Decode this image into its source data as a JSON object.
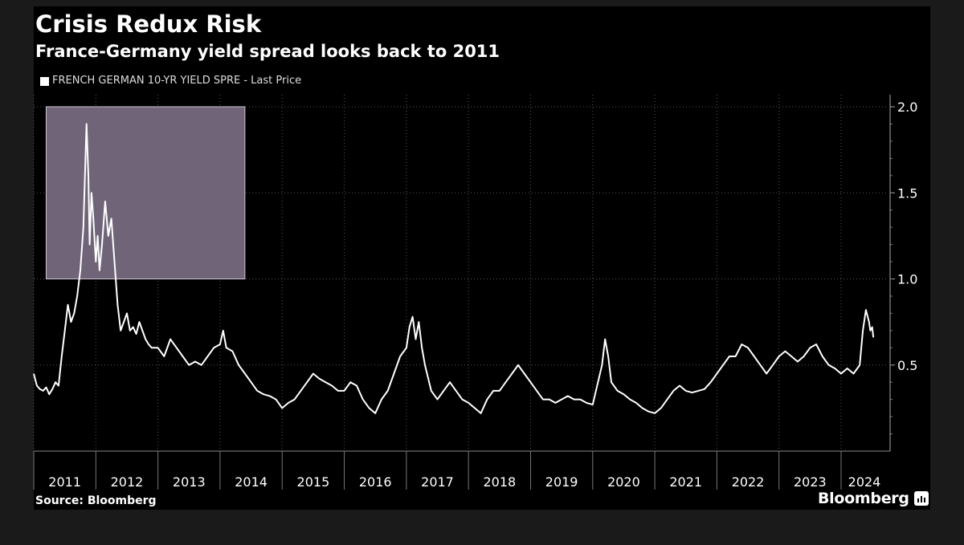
{
  "header": {
    "title": "Crisis Redux Risk",
    "subtitle": "France-Germany yield spread looks back to 2011"
  },
  "footer": {
    "source": "Source: Bloomberg",
    "brand": "Bloomberg",
    "brand_icon": "bar-chart-icon"
  },
  "colors": {
    "background": "#000000",
    "line": "#ffffff",
    "highlight": "#6f6478",
    "grid": "#555555"
  },
  "chart_data": {
    "type": "line",
    "title": "Crisis Redux Risk",
    "subtitle": "France-Germany yield spread looks back to 2011",
    "legend": [
      "FRENCH GERMAN 10-YR YIELD SPRE - Last Price"
    ],
    "legend_position": "top-left",
    "y_axis_position": "right",
    "grid": true,
    "grid_style": "dotted",
    "xlim": [
      2011.0,
      2024.75
    ],
    "ylim": [
      0.0,
      2.0
    ],
    "x_ticks": [
      "2011",
      "2012",
      "2013",
      "2014",
      "2015",
      "2016",
      "2017",
      "2018",
      "2019",
      "2020",
      "2021",
      "2022",
      "2023",
      "2024"
    ],
    "y_ticks": [
      "0.5",
      "1.0",
      "1.5",
      "2.0"
    ],
    "highlight": {
      "x_start": 2011.2,
      "x_end": 2014.4,
      "y_start": 1.0,
      "y_end": 2.0
    },
    "series": [
      {
        "name": "FRENCH GERMAN 10-YR YIELD SPRE - Last Price",
        "x": [
          2011.0,
          2011.05,
          2011.1,
          2011.15,
          2011.2,
          2011.25,
          2011.3,
          2011.35,
          2011.4,
          2011.45,
          2011.5,
          2011.55,
          2011.6,
          2011.65,
          2011.7,
          2011.75,
          2011.8,
          2011.85,
          2011.88,
          2011.9,
          2011.93,
          2011.96,
          2012.0,
          2012.03,
          2012.06,
          2012.1,
          2012.15,
          2012.2,
          2012.25,
          2012.3,
          2012.35,
          2012.4,
          2012.45,
          2012.5,
          2012.55,
          2012.6,
          2012.65,
          2012.7,
          2012.75,
          2012.8,
          2012.85,
          2012.9,
          2013.0,
          2013.1,
          2013.2,
          2013.3,
          2013.4,
          2013.5,
          2013.6,
          2013.7,
          2013.8,
          2013.9,
          2014.0,
          2014.05,
          2014.1,
          2014.2,
          2014.3,
          2014.4,
          2014.5,
          2014.6,
          2014.7,
          2014.8,
          2014.9,
          2015.0,
          2015.1,
          2015.2,
          2015.3,
          2015.4,
          2015.5,
          2015.6,
          2015.7,
          2015.8,
          2015.9,
          2016.0,
          2016.1,
          2016.2,
          2016.3,
          2016.4,
          2016.5,
          2016.6,
          2016.7,
          2016.8,
          2016.9,
          2017.0,
          2017.05,
          2017.1,
          2017.15,
          2017.2,
          2017.25,
          2017.3,
          2017.4,
          2017.5,
          2017.6,
          2017.7,
          2017.8,
          2017.9,
          2018.0,
          2018.1,
          2018.2,
          2018.3,
          2018.4,
          2018.5,
          2018.6,
          2018.7,
          2018.8,
          2018.9,
          2019.0,
          2019.1,
          2019.2,
          2019.3,
          2019.4,
          2019.5,
          2019.6,
          2019.7,
          2019.8,
          2019.9,
          2020.0,
          2020.15,
          2020.2,
          2020.25,
          2020.3,
          2020.4,
          2020.5,
          2020.6,
          2020.7,
          2020.8,
          2020.9,
          2021.0,
          2021.1,
          2021.2,
          2021.3,
          2021.4,
          2021.5,
          2021.6,
          2021.7,
          2021.8,
          2021.9,
          2022.0,
          2022.1,
          2022.2,
          2022.3,
          2022.4,
          2022.5,
          2022.6,
          2022.7,
          2022.8,
          2022.9,
          2023.0,
          2023.1,
          2023.2,
          2023.3,
          2023.4,
          2023.5,
          2023.6,
          2023.7,
          2023.8,
          2023.9,
          2024.0,
          2024.1,
          2024.2,
          2024.3,
          2024.35,
          2024.4,
          2024.45,
          2024.47,
          2024.5,
          2024.52
        ],
        "values": [
          0.45,
          0.38,
          0.36,
          0.35,
          0.37,
          0.33,
          0.36,
          0.4,
          0.38,
          0.55,
          0.7,
          0.85,
          0.75,
          0.8,
          0.9,
          1.05,
          1.3,
          1.9,
          1.6,
          1.2,
          1.5,
          1.35,
          1.1,
          1.25,
          1.05,
          1.2,
          1.45,
          1.25,
          1.35,
          1.1,
          0.85,
          0.7,
          0.75,
          0.8,
          0.7,
          0.72,
          0.68,
          0.75,
          0.7,
          0.65,
          0.62,
          0.6,
          0.6,
          0.55,
          0.65,
          0.6,
          0.55,
          0.5,
          0.52,
          0.5,
          0.55,
          0.6,
          0.62,
          0.7,
          0.6,
          0.58,
          0.5,
          0.45,
          0.4,
          0.35,
          0.33,
          0.32,
          0.3,
          0.25,
          0.28,
          0.3,
          0.35,
          0.4,
          0.45,
          0.42,
          0.4,
          0.38,
          0.35,
          0.35,
          0.4,
          0.38,
          0.3,
          0.25,
          0.22,
          0.3,
          0.35,
          0.45,
          0.55,
          0.6,
          0.72,
          0.78,
          0.65,
          0.75,
          0.6,
          0.5,
          0.35,
          0.3,
          0.35,
          0.4,
          0.35,
          0.3,
          0.28,
          0.25,
          0.22,
          0.3,
          0.35,
          0.35,
          0.4,
          0.45,
          0.5,
          0.45,
          0.4,
          0.35,
          0.3,
          0.3,
          0.28,
          0.3,
          0.32,
          0.3,
          0.3,
          0.28,
          0.27,
          0.5,
          0.65,
          0.55,
          0.4,
          0.35,
          0.33,
          0.3,
          0.28,
          0.25,
          0.23,
          0.22,
          0.25,
          0.3,
          0.35,
          0.38,
          0.35,
          0.34,
          0.35,
          0.36,
          0.4,
          0.45,
          0.5,
          0.55,
          0.55,
          0.62,
          0.6,
          0.55,
          0.5,
          0.45,
          0.5,
          0.55,
          0.58,
          0.55,
          0.52,
          0.55,
          0.6,
          0.62,
          0.55,
          0.5,
          0.48,
          0.45,
          0.48,
          0.45,
          0.5,
          0.7,
          0.82,
          0.75,
          0.7,
          0.72,
          0.66
        ]
      }
    ]
  }
}
